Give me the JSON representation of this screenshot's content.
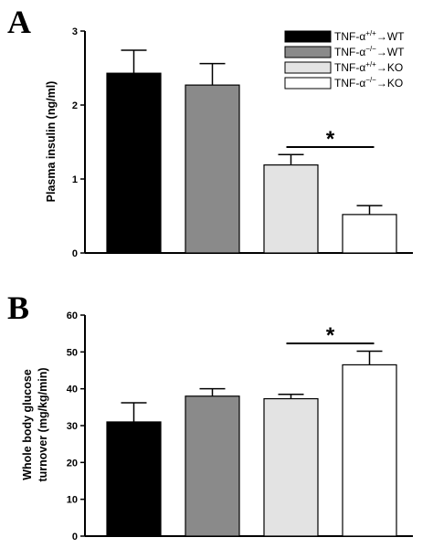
{
  "chart_data": [
    {
      "panel": "A",
      "type": "bar",
      "ylabel": "Plasma insulin (ng/ml)",
      "ylim": [
        0,
        3
      ],
      "yticks": [
        0,
        1,
        2,
        3
      ],
      "categories": [
        "TNF-α+/+→WT",
        "TNF-α−/−→WT",
        "TNF-α+/+→KO",
        "TNF-α−/−→KO"
      ],
      "values": [
        2.43,
        2.27,
        1.19,
        0.52
      ],
      "errors": [
        0.31,
        0.29,
        0.14,
        0.12
      ],
      "colors": [
        "#000000",
        "#8a8a8a",
        "#e3e3e3",
        "#ffffff"
      ],
      "significance": {
        "label": "*",
        "between": [
          2,
          3
        ]
      },
      "legend": {
        "position": "top-right",
        "entries": [
          {
            "prefix": "TNF-α",
            "sup": "+/+",
            "suffix": "→WT"
          },
          {
            "prefix": "TNF-α",
            "sup": "−/−",
            "suffix": "→WT"
          },
          {
            "prefix": "TNF-α",
            "sup": "+/+",
            "suffix": "→KO"
          },
          {
            "prefix": "TNF-α",
            "sup": "−/−",
            "suffix": "→KO"
          }
        ]
      }
    },
    {
      "panel": "B",
      "type": "bar",
      "ylabel": [
        "Whole body glucose",
        "turnover (mg/kg/min)"
      ],
      "ylim": [
        0,
        60
      ],
      "yticks": [
        0,
        10,
        20,
        30,
        40,
        50,
        60
      ],
      "categories": [
        "TNF-α+/+→WT",
        "TNF-α−/−→WT",
        "TNF-α+/+→KO",
        "TNF-α−/−→KO"
      ],
      "values": [
        31.0,
        38.0,
        37.3,
        46.5
      ],
      "errors": [
        5.2,
        2.0,
        1.2,
        3.7
      ],
      "colors": [
        "#000000",
        "#8a8a8a",
        "#e3e3e3",
        "#ffffff"
      ],
      "significance": {
        "label": "*",
        "between": [
          2,
          3
        ]
      }
    }
  ]
}
